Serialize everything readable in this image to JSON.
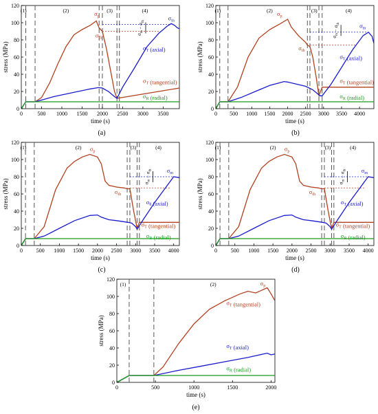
{
  "figure": {
    "colors": {
      "red": "#b2401f",
      "blue": "#1a1acd",
      "green": "#1a9a1a",
      "dash": "#555555",
      "axis": "#000000"
    }
  },
  "chart_data": [
    {
      "type": "line",
      "panel_label": "(a)",
      "xlabel": "time (s)",
      "ylabel": "stress (MPa)",
      "xlim": [
        0,
        3900
      ],
      "ylim": [
        0,
        120
      ],
      "xticks": [
        0,
        500,
        1000,
        1500,
        2000,
        2500,
        3000,
        3500
      ],
      "yticks": [
        0,
        20,
        40,
        60,
        80,
        100,
        120
      ],
      "stage_lines": [
        110,
        340,
        1920,
        2000,
        2360,
        2420
      ],
      "stages": [
        {
          "label": "(1)",
          "x": 55
        },
        {
          "label": "(2)",
          "x": 1100
        },
        {
          "label": "(3)",
          "x": 2180
        },
        {
          "label": "(4)",
          "x": 3050
        }
      ],
      "series": [
        {
          "name": "σT (tangential)",
          "color": "red",
          "x": [
            0,
            110,
            340,
            500,
            700,
            900,
            1100,
            1300,
            1500,
            1700,
            1850,
            1920,
            2000,
            2100,
            2200,
            2300,
            2360,
            3900
          ],
          "y": [
            0,
            8,
            8,
            13,
            30,
            52,
            72,
            86,
            92,
            97,
            102,
            94,
            90,
            70,
            45,
            20,
            12,
            24
          ]
        },
        {
          "name": "σT (axial)",
          "color": "blue",
          "x": [
            0,
            110,
            340,
            500,
            800,
            1100,
            1400,
            1700,
            1900,
            2000,
            2150,
            2300,
            2360,
            2500,
            2800,
            3100,
            3400,
            3600,
            3700,
            3780,
            3850,
            3900
          ],
          "y": [
            0,
            8,
            8,
            10,
            14,
            17,
            20,
            23,
            24.5,
            24,
            20,
            14,
            12,
            25,
            48,
            72,
            88,
            96,
            99,
            97,
            94,
            93
          ]
        },
        {
          "name": "σR (radial)",
          "color": "green",
          "x": [
            0,
            110,
            3900
          ],
          "y": [
            0,
            8,
            8
          ]
        }
      ],
      "series_labels": [
        {
          "text": "σT (axial)",
          "color": "blue",
          "x": 3000,
          "y": 68
        },
        {
          "text": "σT (tangential)",
          "color": "red",
          "x": 3000,
          "y": 30
        },
        {
          "text": "σR (radial)",
          "color": "green",
          "x": 3000,
          "y": 12
        }
      ],
      "peak_labels": [
        {
          "text": "σp",
          "color": "red",
          "x": 1800,
          "y": 108
        },
        {
          "text": "σth",
          "color": "red",
          "x": 1830,
          "y": 83
        },
        {
          "text": "σm",
          "color": "blue",
          "x": 3620,
          "y": 103
        }
      ],
      "ref_lines": [
        {
          "y": 98,
          "x0": 2000,
          "x1": 3700,
          "color": "blue"
        },
        {
          "y": 90,
          "x0": 2000,
          "x1": 3400,
          "color": "red"
        }
      ],
      "diff_label": {
        "text": "σm − σth",
        "x": 2950,
        "y": 94
      }
    },
    {
      "type": "line",
      "panel_label": "(b)",
      "xlabel": "time (s)",
      "ylabel": "stress (MPa)",
      "xlim": [
        0,
        4400
      ],
      "ylim": [
        0,
        120
      ],
      "xticks": [
        0,
        500,
        1000,
        1500,
        2000,
        2500,
        3000,
        3500,
        4000
      ],
      "yticks": [
        0,
        20,
        40,
        60,
        80,
        100,
        120
      ],
      "stage_lines": [
        110,
        340,
        2550,
        2620,
        2870,
        2960
      ],
      "stages": [
        {
          "label": "(1)",
          "x": 55
        },
        {
          "label": "(2)",
          "x": 1500
        },
        {
          "label": "(3)",
          "x": 2740
        },
        {
          "label": "(4)",
          "x": 3700
        }
      ],
      "series": [
        {
          "name": "σT (tangential)",
          "color": "red",
          "x": [
            0,
            110,
            340,
            600,
            900,
            1200,
            1500,
            1800,
            2000,
            2100,
            2300,
            2500,
            2550,
            2620,
            2700,
            2800,
            2870,
            2960,
            4400
          ],
          "y": [
            0,
            8,
            8,
            25,
            60,
            82,
            92,
            99,
            104,
            95,
            85,
            77,
            74,
            72,
            60,
            35,
            15,
            25,
            25
          ]
        },
        {
          "name": "σT (axial)",
          "color": "blue",
          "x": [
            0,
            110,
            340,
            700,
            1100,
            1500,
            1900,
            2000,
            2200,
            2500,
            2700,
            2900,
            2960,
            3200,
            3500,
            3800,
            4100,
            4250,
            4350,
            4400
          ],
          "y": [
            0,
            8,
            8,
            13,
            20,
            27,
            31.5,
            31,
            29,
            26,
            22,
            15,
            15,
            28,
            48,
            68,
            85,
            89,
            84,
            76
          ]
        },
        {
          "name": "σR (radial)",
          "color": "green",
          "x": [
            0,
            110,
            4400
          ],
          "y": [
            0,
            8,
            8
          ]
        }
      ],
      "series_labels": [
        {
          "text": "σT (axial)",
          "color": "blue",
          "x": 3450,
          "y": 58
        },
        {
          "text": "σT (tangential)",
          "color": "red",
          "x": 3450,
          "y": 30
        },
        {
          "text": "σR (radial)",
          "color": "green",
          "x": 3450,
          "y": 12
        }
      ],
      "peak_labels": [
        {
          "text": "σp",
          "color": "red",
          "x": 1700,
          "y": 108
        },
        {
          "text": "σth",
          "color": "red",
          "x": 2300,
          "y": 68
        },
        {
          "text": "σm",
          "color": "blue",
          "x": 4000,
          "y": 94
        }
      ],
      "ref_lines": [
        {
          "y": 89,
          "x0": 2620,
          "x1": 4200,
          "color": "blue"
        },
        {
          "y": 74,
          "x0": 2620,
          "x1": 3900,
          "color": "red"
        }
      ],
      "diff_label": {
        "text": "σm − σth",
        "x": 3350,
        "y": 91
      }
    },
    {
      "type": "line",
      "panel_label": "(c)",
      "xlabel": "time (s)",
      "ylabel": "stress (MPa)",
      "xlim": [
        0,
        4150
      ],
      "ylim": [
        0,
        120
      ],
      "xticks": [
        0,
        500,
        1000,
        1500,
        2000,
        2500,
        3000,
        3500,
        4000
      ],
      "yticks": [
        0,
        20,
        40,
        60,
        80,
        100,
        120
      ],
      "stage_lines": [
        110,
        340,
        2780,
        2850,
        3040,
        3100
      ],
      "stages": [
        {
          "label": "(1)",
          "x": 55
        },
        {
          "label": "(2)",
          "x": 1500
        },
        {
          "label": "(3)",
          "x": 2940
        },
        {
          "label": "(4)",
          "x": 3600
        }
      ],
      "series": [
        {
          "name": "σT (tangential)",
          "color": "red",
          "x": [
            0,
            110,
            340,
            600,
            900,
            1200,
            1400,
            1600,
            1800,
            2000,
            2100,
            2200,
            2300,
            2500,
            2700,
            2780,
            2850,
            2950,
            3040,
            3100,
            4150
          ],
          "y": [
            0,
            8,
            8,
            22,
            65,
            90,
            98,
            103,
            106,
            103,
            95,
            75,
            70,
            68,
            67,
            66,
            66,
            40,
            20,
            27,
            27
          ]
        },
        {
          "name": "σT (axial)",
          "color": "blue",
          "x": [
            0,
            110,
            340,
            600,
            1000,
            1400,
            1800,
            2000,
            2100,
            2300,
            2500,
            2800,
            2900,
            3000,
            3040,
            3200,
            3500,
            3800,
            4000,
            4150
          ],
          "y": [
            0,
            8,
            8,
            11,
            20,
            29,
            35,
            35.5,
            33,
            30,
            29,
            27,
            26,
            22,
            19,
            30,
            50,
            68,
            80,
            79
          ]
        },
        {
          "name": "σR (radial)",
          "color": "green",
          "x": [
            0,
            110,
            4150
          ],
          "y": [
            0,
            8,
            8
          ]
        }
      ],
      "series_labels": [
        {
          "text": "σθ (axial)",
          "color": "blue",
          "x": 3280,
          "y": 48
        },
        {
          "text": "σT (tangential)",
          "color": "red",
          "x": 3150,
          "y": 22
        },
        {
          "text": "σR (radial)",
          "color": "green",
          "x": 3280,
          "y": 9
        }
      ],
      "peak_labels": [
        {
          "text": "σp",
          "color": "red",
          "x": 1800,
          "y": 110
        },
        {
          "text": "σth",
          "color": "red",
          "x": 2450,
          "y": 60
        },
        {
          "text": "σm",
          "color": "blue",
          "x": 3820,
          "y": 85
        }
      ],
      "ref_lines": [
        {
          "y": 80,
          "x0": 2850,
          "x1": 4000,
          "color": "blue"
        },
        {
          "y": 67,
          "x0": 2850,
          "x1": 3900,
          "color": "red"
        }
      ],
      "diff_label": {
        "text": "σm − σth",
        "x": 3330,
        "y": 80
      }
    },
    {
      "type": "line",
      "panel_label": "(d)",
      "xlabel": "time (s)",
      "ylabel": "stress (MPa)",
      "xlim": [
        0,
        4150
      ],
      "ylim": [
        0,
        120
      ],
      "xticks": [
        0,
        500,
        1000,
        1500,
        2000,
        2500,
        3000,
        3500,
        4000
      ],
      "yticks": [
        0,
        20,
        40,
        60,
        80,
        100,
        120
      ],
      "stage_lines": [
        110,
        340,
        2780,
        2850,
        3040,
        3100
      ],
      "stages": [
        {
          "label": "(1)",
          "x": 55
        },
        {
          "label": "(2)",
          "x": 1500
        },
        {
          "label": "(3)",
          "x": 2940
        },
        {
          "label": "(4)",
          "x": 3600
        }
      ],
      "series": [
        {
          "name": "σT (tangential)",
          "color": "red",
          "x": [
            0,
            110,
            340,
            600,
            900,
            1200,
            1400,
            1600,
            1800,
            2000,
            2100,
            2200,
            2300,
            2500,
            2700,
            2780,
            2850,
            2950,
            3040,
            3100,
            4150
          ],
          "y": [
            0,
            8,
            8,
            22,
            65,
            90,
            98,
            103,
            106,
            103,
            95,
            75,
            70,
            68,
            67,
            66,
            66,
            40,
            20,
            27,
            27
          ]
        },
        {
          "name": "σT (axial)",
          "color": "blue",
          "x": [
            0,
            110,
            340,
            600,
            1000,
            1400,
            1800,
            2000,
            2100,
            2300,
            2500,
            2800,
            2900,
            3000,
            3040,
            3200,
            3500,
            3800,
            4000,
            4150
          ],
          "y": [
            0,
            8,
            8,
            11,
            20,
            29,
            35,
            35.5,
            33,
            30,
            29,
            27,
            26,
            22,
            19,
            30,
            50,
            68,
            80,
            79
          ]
        },
        {
          "name": "σR (radial)",
          "color": "green",
          "x": [
            0,
            110,
            4150
          ],
          "y": [
            0,
            8,
            8
          ]
        }
      ],
      "series_labels": [
        {
          "text": "σT (axial)",
          "color": "blue",
          "x": 3280,
          "y": 48
        },
        {
          "text": "σT (tangential)",
          "color": "red",
          "x": 3150,
          "y": 22
        },
        {
          "text": "σR (radial)",
          "color": "green",
          "x": 3280,
          "y": 9
        }
      ],
      "peak_labels": [
        {
          "text": "σp",
          "color": "red",
          "x": 1800,
          "y": 110
        },
        {
          "text": "σth",
          "color": "red",
          "x": 2450,
          "y": 60
        },
        {
          "text": "σm",
          "color": "blue",
          "x": 3820,
          "y": 85
        }
      ],
      "ref_lines": [
        {
          "y": 80,
          "x0": 2850,
          "x1": 4000,
          "color": "blue"
        },
        {
          "y": 67,
          "x0": 2850,
          "x1": 3900,
          "color": "red"
        }
      ],
      "diff_label": {
        "text": "σm − σth",
        "x": 3330,
        "y": 80
      }
    },
    {
      "type": "line",
      "panel_label": "(e)",
      "xlabel": "time (s)",
      "ylabel": "stress (MPa)",
      "xlim": [
        0,
        2050
      ],
      "ylim": [
        0,
        120
      ],
      "xticks": [
        0,
        500,
        1000,
        1500,
        2000
      ],
      "yticks": [
        0,
        20,
        40,
        60,
        80,
        100,
        120
      ],
      "stage_lines": [
        160,
        480
      ],
      "stages": [
        {
          "label": "(1)",
          "x": 80
        },
        {
          "label": "(2)",
          "x": 1250
        }
      ],
      "series": [
        {
          "name": "σT (tangential)",
          "color": "red",
          "x": [
            0,
            160,
            480,
            600,
            800,
            1000,
            1200,
            1400,
            1600,
            1700,
            1800,
            1900,
            1950,
            2000,
            2050
          ],
          "y": [
            0,
            8,
            8,
            18,
            45,
            68,
            85,
            95,
            103,
            106,
            104,
            108,
            110,
            103,
            95
          ]
        },
        {
          "name": "σT (axial)",
          "color": "blue",
          "x": [
            0,
            160,
            480,
            800,
            1100,
            1400,
            1700,
            1900,
            1950,
            2000,
            2050
          ],
          "y": [
            0,
            8,
            8,
            14,
            19,
            24,
            29,
            33,
            34,
            32,
            33
          ]
        },
        {
          "name": "σR (radial)",
          "color": "green",
          "x": [
            0,
            160,
            2050
          ],
          "y": [
            0,
            8,
            8
          ]
        }
      ],
      "series_labels": [
        {
          "text": "σT (tangential)",
          "color": "red",
          "x": 1420,
          "y": 90
        },
        {
          "text": "σT (axial)",
          "color": "blue",
          "x": 1420,
          "y": 40
        },
        {
          "text": "σR (radial)",
          "color": "green",
          "x": 1420,
          "y": 14
        }
      ],
      "peak_labels": [
        {
          "text": "σp",
          "color": "red",
          "x": 1860,
          "y": 113
        }
      ],
      "ref_lines": [],
      "diff_label": null
    }
  ]
}
